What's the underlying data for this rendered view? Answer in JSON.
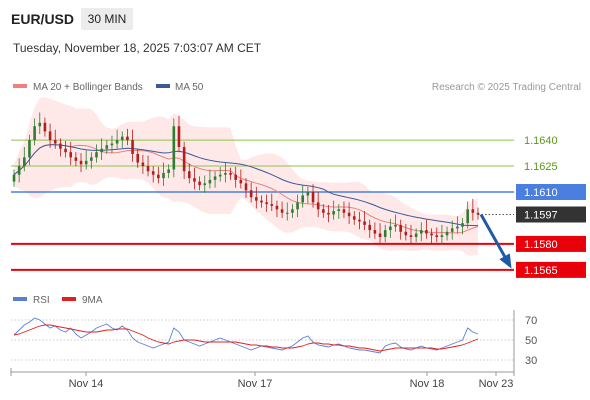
{
  "header": {
    "symbol": "EUR/USD",
    "timeframe": "30 MIN",
    "datetime": "Tuesday, November 18, 2025 7:03:07 AM CET"
  },
  "legend": {
    "ma20_label": "MA 20 + Bollinger Bands",
    "ma50_label": "MA 50",
    "ma20_color": "#f08080",
    "ma50_color": "#3a5a9a"
  },
  "research": "Research © 2025 Trading Central",
  "rsi_legend": {
    "rsi_label": "RSI",
    "ma9_label": "9MA",
    "rsi_color": "#5b7fd6",
    "ma9_color": "#e02020"
  },
  "colors": {
    "up": "#2e7d32",
    "down": "#b71c1c",
    "resistance": "#8bc34a",
    "pivot": "#4a7fe0",
    "support": "#e8000b",
    "current": "#333333",
    "arrow": "#1f5aa8"
  },
  "chart_data": [
    {
      "type": "candlestick",
      "title": "EUR/USD",
      "x_ticks": [
        "Nov 14",
        "Nov 17",
        "Nov 18",
        "Nov 23"
      ],
      "ylim": [
        1.1558,
        1.1662
      ],
      "levels": [
        {
          "label": "1.1640",
          "value": 1.164,
          "kind": "resistance"
        },
        {
          "label": "1.1625",
          "value": 1.1625,
          "kind": "resistance"
        },
        {
          "label": "1.1610",
          "value": 1.161,
          "kind": "pivot"
        },
        {
          "label": "1.1597",
          "value": 1.1597,
          "kind": "current"
        },
        {
          "label": "1.1580",
          "value": 1.158,
          "kind": "support"
        },
        {
          "label": "1.1565",
          "value": 1.1565,
          "kind": "support"
        }
      ],
      "series": [
        {
          "name": "MA 20 + Bollinger Bands"
        },
        {
          "name": "MA 50"
        }
      ],
      "forecast": {
        "direction": "down",
        "from": 1.1597,
        "to": 1.1565
      },
      "close": [
        1.162,
        1.1625,
        1.163,
        1.164,
        1.1648,
        1.165,
        1.1645,
        1.164,
        1.1638,
        1.1635,
        1.1633,
        1.163,
        1.1628,
        1.1626,
        1.1628,
        1.163,
        1.1633,
        1.1635,
        1.1637,
        1.1638,
        1.164,
        1.1642,
        1.164,
        1.1632,
        1.1627,
        1.1625,
        1.1622,
        1.162,
        1.1618,
        1.1621,
        1.1623,
        1.1648,
        1.1636,
        1.1622,
        1.1618,
        1.1616,
        1.1614,
        1.1615,
        1.1617,
        1.1619,
        1.162,
        1.1621,
        1.162,
        1.1617,
        1.1615,
        1.1611,
        1.1607,
        1.1605,
        1.1604,
        1.1603,
        1.1602,
        1.16,
        1.1598,
        1.1598,
        1.16,
        1.1604,
        1.1608,
        1.161,
        1.1604,
        1.16,
        1.1598,
        1.1597,
        1.1599,
        1.16,
        1.1598,
        1.1596,
        1.1594,
        1.1593,
        1.1591,
        1.1588,
        1.1586,
        1.1584,
        1.1588,
        1.159,
        1.1591,
        1.1587,
        1.1585,
        1.1584,
        1.1586,
        1.1588,
        1.1586,
        1.1585,
        1.1584,
        1.1585,
        1.1587,
        1.1589,
        1.159,
        1.1592,
        1.16,
        1.1598,
        1.1597
      ]
    },
    {
      "type": "line",
      "title": "RSI",
      "ylim": [
        20,
        80
      ],
      "y_ticks": [
        70,
        50,
        30
      ],
      "series": [
        {
          "name": "RSI",
          "values": [
            55,
            60,
            65,
            68,
            72,
            70,
            66,
            62,
            64,
            60,
            58,
            62,
            56,
            52,
            55,
            58,
            62,
            64,
            66,
            62,
            60,
            64,
            60,
            52,
            48,
            46,
            44,
            42,
            44,
            46,
            48,
            62,
            58,
            50,
            48,
            46,
            44,
            46,
            48,
            50,
            52,
            50,
            48,
            46,
            44,
            42,
            40,
            42,
            44,
            43,
            42,
            41,
            40,
            42,
            44,
            48,
            52,
            54,
            48,
            45,
            44,
            43,
            45,
            46,
            44,
            42,
            41,
            40,
            40,
            39,
            38,
            37,
            44,
            46,
            47,
            43,
            41,
            40,
            42,
            44,
            42,
            41,
            40,
            42,
            44,
            46,
            48,
            50,
            62,
            58,
            56
          ]
        },
        {
          "name": "9MA",
          "values": [
            55,
            56,
            58,
            60,
            62,
            64,
            65,
            65,
            64,
            63,
            62,
            61,
            60,
            59,
            58,
            58,
            58,
            59,
            60,
            60,
            61,
            61,
            61,
            59,
            57,
            55,
            52,
            50,
            48,
            47,
            46,
            48,
            49,
            50,
            50,
            50,
            49,
            48,
            48,
            48,
            48,
            48,
            48,
            48,
            47,
            46,
            45,
            45,
            44,
            44,
            43,
            43,
            42,
            42,
            42,
            43,
            44,
            46,
            47,
            47,
            46,
            46,
            45,
            45,
            44,
            44,
            43,
            42,
            42,
            41,
            40,
            39,
            40,
            41,
            42,
            42,
            42,
            42,
            42,
            42,
            42,
            42,
            41,
            41,
            42,
            43,
            44,
            45,
            47,
            49,
            51
          ]
        }
      ]
    }
  ]
}
